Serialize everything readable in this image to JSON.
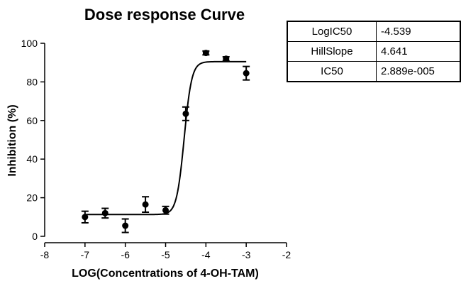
{
  "chart_data": {
    "type": "scatter",
    "title": "Dose response Curve",
    "xlabel": "LOG(Concentrations of 4-OH-TAM)",
    "ylabel": "Inhibition (%)",
    "xlim": [
      -8,
      -2
    ],
    "ylim": [
      0,
      100
    ],
    "x_ticks": [
      "-8",
      "-7",
      "-6",
      "-5",
      "-4",
      "-3",
      "-2"
    ],
    "y_ticks": [
      "0",
      "20",
      "40",
      "60",
      "80",
      "100"
    ],
    "points": [
      {
        "x": -7.0,
        "y": 10.0,
        "err": 3.0
      },
      {
        "x": -6.5,
        "y": 12.0,
        "err": 2.5
      },
      {
        "x": -6.0,
        "y": 5.5,
        "err": 3.5
      },
      {
        "x": -5.5,
        "y": 16.5,
        "err": 4.0
      },
      {
        "x": -5.0,
        "y": 13.5,
        "err": 2.0
      },
      {
        "x": -4.5,
        "y": 63.5,
        "err": 3.5
      },
      {
        "x": -4.0,
        "y": 95.0,
        "err": 1.0
      },
      {
        "x": -3.5,
        "y": 92.0,
        "err": 1.0
      },
      {
        "x": -3.0,
        "y": 84.5,
        "err": 3.5
      }
    ],
    "fit": {
      "bottom": 11.3,
      "top": 90.5,
      "logIC50": -4.539,
      "hillSlope": 4.641,
      "x_range": [
        -7,
        -3
      ]
    },
    "grid": false,
    "legend": "none"
  },
  "parameters": [
    {
      "name": "LogIC50",
      "value": "-4.539"
    },
    {
      "name": "HillSlope",
      "value": "4.641"
    },
    {
      "name": "IC50",
      "value": "2.889e-005"
    }
  ]
}
